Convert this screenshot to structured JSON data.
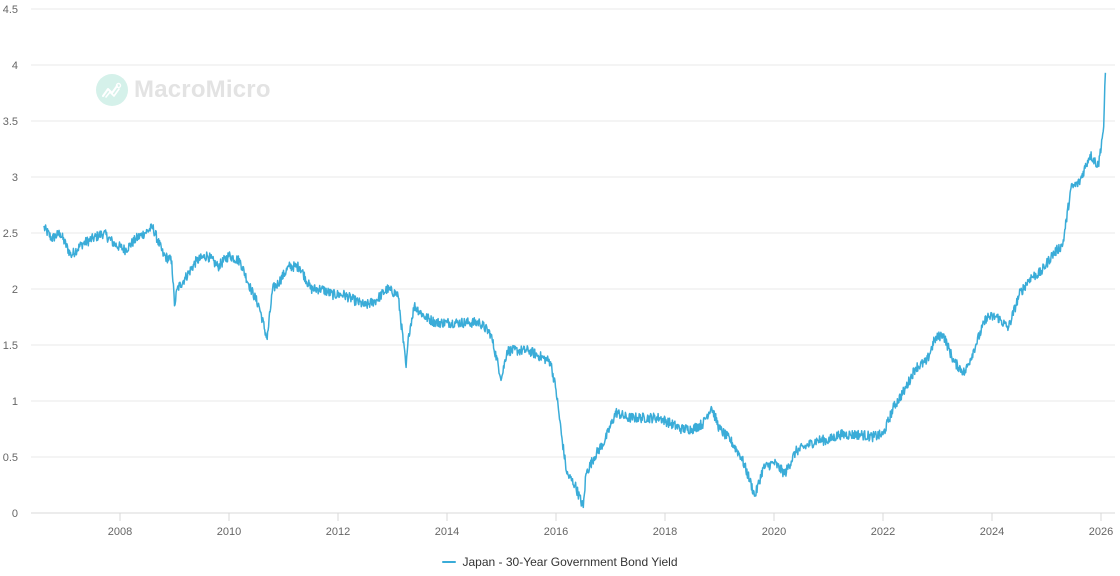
{
  "chart_data": {
    "type": "line",
    "title": "",
    "xlabel": "",
    "ylabel": "",
    "ylim": [
      0,
      4.5
    ],
    "yticks": [
      "0",
      "0.5",
      "1",
      "1.5",
      "2",
      "2.5",
      "3",
      "3.5",
      "4",
      "4.5"
    ],
    "xticks": [
      "2008",
      "2010",
      "2012",
      "2014",
      "2016",
      "2018",
      "2020",
      "2022",
      "2024",
      "2026"
    ],
    "xrange": [
      2006.6,
      2026.25
    ],
    "grid": true,
    "legend_position": "bottom-center",
    "series": [
      {
        "name": "Japan - 30-Year Government Bond Yield",
        "color": "#3aacd8",
        "x": [
          2006.6,
          2006.75,
          2006.9,
          2007.1,
          2007.3,
          2007.5,
          2007.7,
          2007.9,
          2008.1,
          2008.3,
          2008.45,
          2008.6,
          2008.8,
          2008.95,
          2009.0,
          2009.05,
          2009.2,
          2009.4,
          2009.6,
          2009.8,
          2010.0,
          2010.2,
          2010.4,
          2010.55,
          2010.7,
          2010.8,
          2010.9,
          2011.1,
          2011.3,
          2011.5,
          2011.7,
          2011.9,
          2012.1,
          2012.3,
          2012.5,
          2012.7,
          2012.9,
          2013.1,
          2013.25,
          2013.3,
          2013.4,
          2013.6,
          2013.8,
          2014.0,
          2014.2,
          2014.4,
          2014.6,
          2014.8,
          2015.0,
          2015.1,
          2015.3,
          2015.5,
          2015.7,
          2015.9,
          2016.0,
          2016.1,
          2016.2,
          2016.35,
          2016.5,
          2016.55,
          2016.7,
          2016.9,
          2017.1,
          2017.3,
          2017.5,
          2017.7,
          2017.9,
          2018.1,
          2018.3,
          2018.5,
          2018.7,
          2018.85,
          2019.0,
          2019.2,
          2019.4,
          2019.55,
          2019.65,
          2019.8,
          2020.0,
          2020.2,
          2020.4,
          2020.6,
          2020.8,
          2021.0,
          2021.2,
          2021.4,
          2021.6,
          2021.8,
          2022.0,
          2022.2,
          2022.4,
          2022.6,
          2022.8,
          2022.95,
          2023.1,
          2023.3,
          2023.5,
          2023.7,
          2023.9,
          2024.1,
          2024.3,
          2024.5,
          2024.7,
          2024.9,
          2025.1,
          2025.2,
          2025.3,
          2025.45,
          2025.6,
          2025.8,
          2025.95,
          2026.05,
          2026.08
        ],
        "values": [
          2.55,
          2.45,
          2.5,
          2.3,
          2.4,
          2.45,
          2.5,
          2.4,
          2.35,
          2.45,
          2.5,
          2.55,
          2.3,
          2.25,
          1.85,
          2.0,
          2.1,
          2.25,
          2.3,
          2.2,
          2.3,
          2.25,
          2.0,
          1.85,
          1.55,
          2.0,
          2.05,
          2.2,
          2.2,
          2.0,
          2.0,
          1.95,
          1.95,
          1.9,
          1.85,
          1.9,
          2.0,
          1.95,
          1.3,
          1.6,
          1.85,
          1.75,
          1.7,
          1.7,
          1.7,
          1.7,
          1.7,
          1.6,
          1.2,
          1.45,
          1.45,
          1.45,
          1.4,
          1.35,
          1.1,
          0.7,
          0.35,
          0.25,
          0.05,
          0.35,
          0.5,
          0.65,
          0.9,
          0.85,
          0.85,
          0.85,
          0.85,
          0.8,
          0.75,
          0.75,
          0.8,
          0.95,
          0.75,
          0.65,
          0.5,
          0.3,
          0.15,
          0.4,
          0.45,
          0.35,
          0.55,
          0.6,
          0.65,
          0.65,
          0.7,
          0.7,
          0.7,
          0.68,
          0.7,
          0.95,
          1.1,
          1.3,
          1.35,
          1.55,
          1.6,
          1.35,
          1.25,
          1.5,
          1.75,
          1.75,
          1.65,
          1.95,
          2.1,
          2.15,
          2.3,
          2.35,
          2.4,
          2.9,
          2.95,
          3.2,
          3.1,
          3.45,
          3.93
        ]
      }
    ]
  },
  "watermark": {
    "text": "MacroMicro"
  },
  "legend": {
    "label": "Japan - 30-Year Government Bond Yield"
  }
}
